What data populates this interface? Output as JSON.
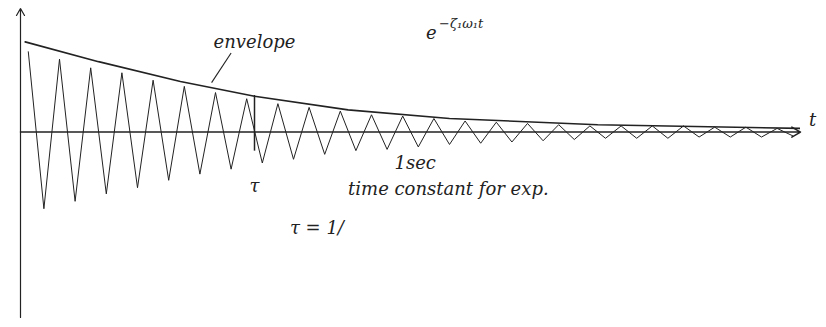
{
  "chart_data": {
    "type": "line",
    "xlabel": "t",
    "xlim": [
      0,
      10
    ],
    "ylim": [
      -1.5,
      1
    ],
    "xticks": [],
    "yticks": [],
    "tick_labels": false,
    "grid": false,
    "series": [
      {
        "name": "envelope",
        "color": "#222222",
        "x": [
          0.06,
          1.0,
          2.05,
          3.0,
          4.2,
          5.5,
          7.4,
          10
        ],
        "values": [
          0.73,
          0.57,
          0.41,
          0.29,
          0.18,
          0.11,
          0.06,
          0.03
        ]
      },
      {
        "color": "#222222",
        "x": [
          0.1,
          0.3,
          0.5,
          0.7,
          0.9,
          1.1,
          1.3,
          1.5,
          1.7,
          1.9,
          2.1,
          2.3,
          2.5,
          2.7,
          2.9,
          3.1,
          3.3,
          3.5,
          3.7,
          3.9,
          4.1,
          4.3,
          4.5,
          4.7,
          4.9,
          5.1,
          5.3,
          5.5,
          5.7,
          5.9,
          6.1,
          6.3,
          6.5,
          6.7,
          6.9,
          7.1,
          7.3,
          7.5,
          7.7,
          7.9,
          8.1,
          8.3,
          8.5,
          8.7,
          8.9,
          9.1,
          9.3,
          9.5,
          9.7,
          9.9
        ],
        "values": [
          0.65,
          -0.62,
          0.59,
          -0.56,
          0.52,
          -0.5,
          0.48,
          -0.45,
          0.42,
          -0.39,
          0.37,
          -0.34,
          0.32,
          -0.3,
          0.27,
          -0.25,
          0.23,
          -0.22,
          0.2,
          -0.18,
          0.17,
          -0.15,
          0.14,
          -0.14,
          0.13,
          -0.12,
          0.11,
          -0.1,
          0.09,
          -0.09,
          0.08,
          -0.08,
          0.07,
          -0.07,
          0.06,
          -0.06,
          0.05,
          -0.05,
          0.05,
          -0.05,
          0.05,
          -0.05,
          0.05,
          -0.04,
          0.04,
          -0.04,
          0.04,
          -0.04,
          0.03,
          -0.03
        ]
      }
    ],
    "marker_line": {
      "x": 3.0,
      "y1": -0.15,
      "y2": 0.3
    },
    "annotations": [
      {
        "text": "envelope",
        "x": 3.0,
        "y": 0.73,
        "leader": [
          [
            2.7,
            0.64
          ],
          [
            2.45,
            0.4
          ]
        ]
      },
      {
        "text": "e",
        "superscript": "−ζ₁ω₁t",
        "x": 5.2,
        "y": 0.8
      },
      {
        "text": "1sec",
        "x": 5.06,
        "y": -0.25
      },
      {
        "text": "τ",
        "x": 3.0,
        "y": -0.44
      },
      {
        "text": "time constant for exp.",
        "x": 4.2,
        "y": -0.46
      },
      {
        "text": "τ = 1/",
        "x": 3.8,
        "y": -0.78
      }
    ]
  }
}
